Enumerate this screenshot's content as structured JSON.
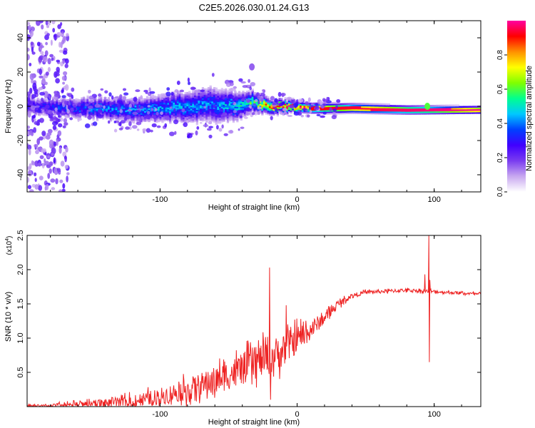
{
  "title": "C2E5.2026.030.01.24.G13",
  "chart_data": [
    {
      "type": "heatmap",
      "xlabel": "Height of straight line (km)",
      "ylabel": "Frequency (Hz)",
      "xlim": [
        -197,
        134
      ],
      "ylim": [
        -50,
        50
      ],
      "xticks": [
        -100,
        0,
        100
      ],
      "xtick_labels": [
        "-100",
        "0",
        "100"
      ],
      "yticks": [
        -40,
        -20,
        0,
        20,
        40
      ],
      "ytick_labels": [
        "-40",
        "-20",
        "0",
        "20",
        "40"
      ],
      "colorbar": {
        "label": "Normalized spectral amplitude",
        "range": [
          0,
          1
        ],
        "ticks": [
          0,
          0.2,
          0.4,
          0.6,
          0.8
        ],
        "tick_labels": [
          "0.0",
          "0.2",
          "0.4",
          "0.6",
          "0.8"
        ],
        "colors": [
          "#ffffff",
          "#c8a8f0",
          "#7a3cf0",
          "#4000ff",
          "#0040ff",
          "#00c8ff",
          "#00ff90",
          "#80ff00",
          "#ffff00",
          "#ff9000",
          "#ff0000",
          "#ff00a0"
        ]
      },
      "band_center_hz": [
        [
          -190,
          0
        ],
        [
          -150,
          -1
        ],
        [
          -120,
          -2
        ],
        [
          -100,
          -1
        ],
        [
          -80,
          0
        ],
        [
          -60,
          1
        ],
        [
          -45,
          0
        ],
        [
          -35,
          3
        ],
        [
          -25,
          1
        ],
        [
          -15,
          0
        ],
        [
          -5,
          0
        ],
        [
          10,
          -1
        ],
        [
          40,
          -1
        ],
        [
          80,
          -2
        ],
        [
          95,
          -2
        ],
        [
          134,
          -2
        ]
      ],
      "band_halfwidth_hz": [
        [
          -190,
          5
        ],
        [
          -150,
          6
        ],
        [
          -110,
          7
        ],
        [
          -80,
          9
        ],
        [
          -60,
          10
        ],
        [
          -45,
          8
        ],
        [
          -35,
          6
        ],
        [
          -20,
          4
        ],
        [
          0,
          3
        ],
        [
          40,
          2.5
        ],
        [
          134,
          2
        ]
      ],
      "peak_amplitude": [
        [
          -190,
          0.3
        ],
        [
          -150,
          0.38
        ],
        [
          -100,
          0.42
        ],
        [
          -60,
          0.4
        ],
        [
          -40,
          0.5
        ],
        [
          -30,
          0.62
        ],
        [
          -20,
          0.82
        ],
        [
          -10,
          0.9
        ],
        [
          0,
          0.9
        ],
        [
          20,
          0.92
        ],
        [
          50,
          0.95
        ],
        [
          134,
          1.0
        ]
      ],
      "features": [
        {
          "x": -33,
          "y": 23,
          "amplitude": 0.15,
          "description": "isolated blob"
        },
        {
          "x": 95,
          "y": 0,
          "amplitude": 0.6,
          "description": "local disturbance"
        }
      ]
    },
    {
      "type": "line",
      "xlabel": "Height of straight line (km)",
      "ylabel": "SNR (10 * v/v)",
      "y_multiplier": "(x10⁴)",
      "y_multiplier_base": "(x10",
      "y_multiplier_exp": "4",
      "y_multiplier_close": ")",
      "xlim": [
        -197,
        134
      ],
      "ylim": [
        0,
        2.5
      ],
      "xticks": [
        -100,
        0,
        100
      ],
      "xtick_labels": [
        "-100",
        "0",
        "100"
      ],
      "yticks": [
        0.5,
        1.0,
        1.5,
        2.0,
        2.5
      ],
      "ytick_labels": [
        "0.5",
        "1.0",
        "1.5",
        "2.0",
        "2.5"
      ],
      "series": [
        {
          "name": "SNR",
          "color": "#ee2222",
          "baseline": [
            [
              -197,
              0.01
            ],
            [
              -170,
              0.02
            ],
            [
              -140,
              0.05
            ],
            [
              -120,
              0.08
            ],
            [
              -100,
              0.15
            ],
            [
              -80,
              0.25
            ],
            [
              -60,
              0.38
            ],
            [
              -40,
              0.55
            ],
            [
              -30,
              0.65
            ],
            [
              -20,
              0.72
            ],
            [
              -10,
              0.82
            ],
            [
              -5,
              0.9
            ],
            [
              0,
              1.0
            ],
            [
              5,
              1.05
            ],
            [
              10,
              1.12
            ],
            [
              20,
              1.3
            ],
            [
              30,
              1.5
            ],
            [
              40,
              1.62
            ],
            [
              50,
              1.67
            ],
            [
              60,
              1.68
            ],
            [
              80,
              1.7
            ],
            [
              100,
              1.68
            ],
            [
              134,
              1.64
            ]
          ],
          "noise": [
            [
              -197,
              0.015
            ],
            [
              -150,
              0.05
            ],
            [
              -100,
              0.12
            ],
            [
              -60,
              0.2
            ],
            [
              -30,
              0.25
            ],
            [
              -10,
              0.25
            ],
            [
              5,
              0.18
            ],
            [
              20,
              0.08
            ],
            [
              40,
              0.03
            ],
            [
              134,
              0.02
            ]
          ],
          "spikes": [
            {
              "x": -20,
              "y": 2.03
            },
            {
              "x": -19.5,
              "y": 0.1
            },
            {
              "x": -8,
              "y": 1.48
            },
            {
              "x": 93,
              "y": 1.93
            },
            {
              "x": 96,
              "y": 2.5
            },
            {
              "x": 96.5,
              "y": 0.65
            },
            {
              "x": 97,
              "y": 1.85
            }
          ]
        }
      ]
    }
  ]
}
